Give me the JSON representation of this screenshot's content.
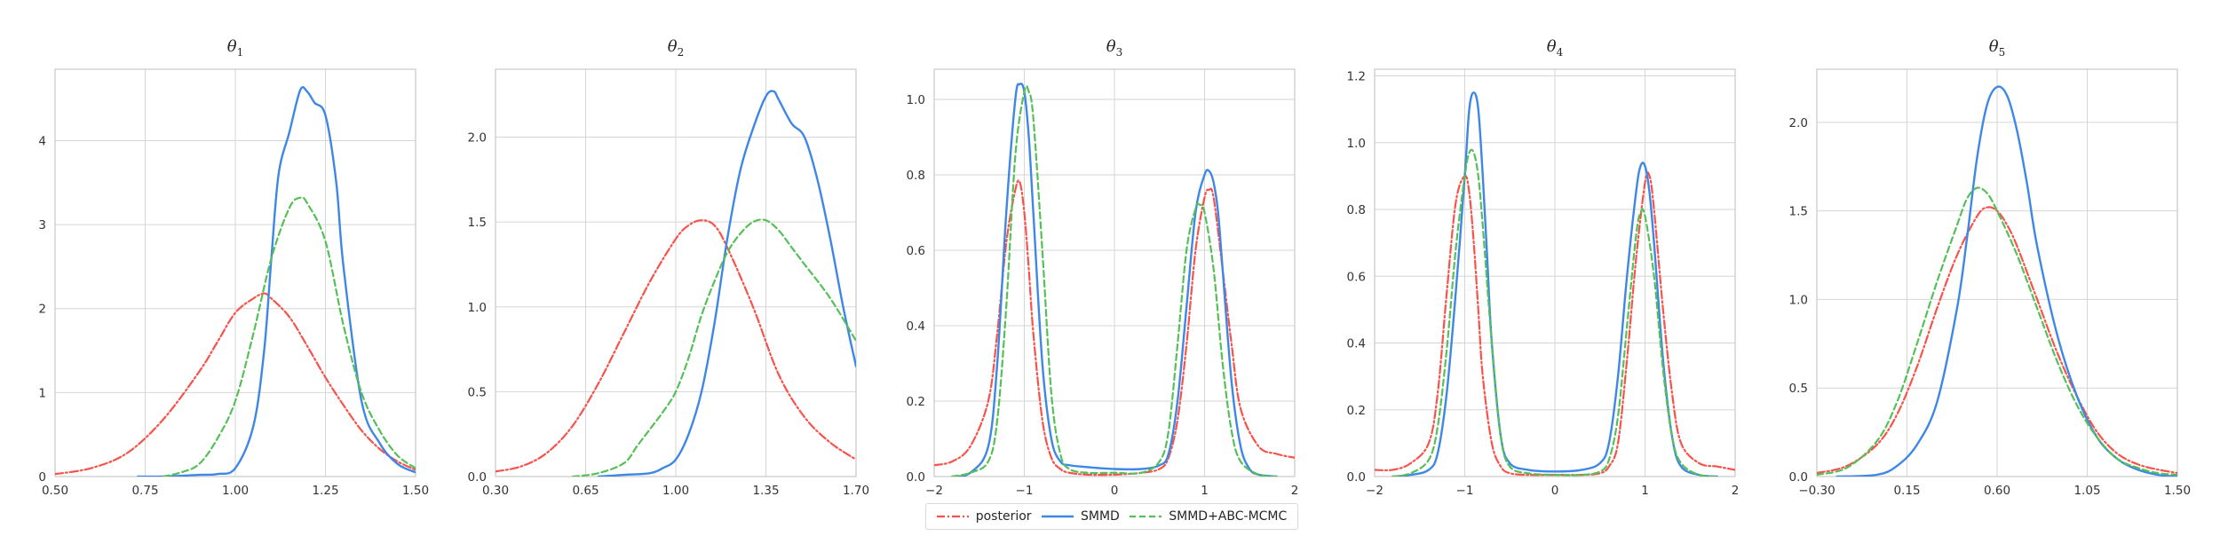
{
  "chart_data": [
    {
      "type": "line",
      "title": "θ1",
      "title_sub": "1",
      "xlim": [
        0.5,
        1.5
      ],
      "ylim": [
        0,
        4.85
      ],
      "xticks": [
        0.5,
        0.75,
        1.0,
        1.25,
        1.5
      ],
      "xtick_labels": [
        "0.50",
        "0.75",
        "1.00",
        "1.25",
        "1.50"
      ],
      "yticks": [
        0,
        1,
        2,
        3,
        4
      ],
      "ytick_labels": [
        "0",
        "1",
        "2",
        "3",
        "4"
      ],
      "grid": true,
      "series": [
        {
          "name": "posterior",
          "x": [
            0.5,
            0.6,
            0.7,
            0.8,
            0.9,
            0.95,
            1.0,
            1.05,
            1.08,
            1.1,
            1.15,
            1.2,
            1.25,
            1.3,
            1.35,
            1.4,
            1.45,
            1.5
          ],
          "y": [
            0.03,
            0.1,
            0.28,
            0.68,
            1.25,
            1.6,
            1.95,
            2.12,
            2.18,
            2.12,
            1.9,
            1.55,
            1.18,
            0.85,
            0.55,
            0.33,
            0.18,
            0.08
          ]
        },
        {
          "name": "SMMD",
          "x": [
            0.73,
            0.8,
            0.9,
            0.95,
            1.0,
            1.05,
            1.08,
            1.1,
            1.12,
            1.15,
            1.18,
            1.2,
            1.22,
            1.25,
            1.28,
            1.3,
            1.35,
            1.4,
            1.45,
            1.5
          ],
          "y": [
            0,
            0,
            0.02,
            0.03,
            0.1,
            0.6,
            1.5,
            2.6,
            3.6,
            4.1,
            4.6,
            4.58,
            4.45,
            4.3,
            3.5,
            2.5,
            0.9,
            0.4,
            0.15,
            0.05
          ]
        },
        {
          "name": "SMMD+ABC-MCMC",
          "x": [
            0.8,
            0.85,
            0.9,
            0.95,
            1.0,
            1.05,
            1.1,
            1.15,
            1.18,
            1.2,
            1.25,
            1.3,
            1.35,
            1.4,
            1.45,
            1.5
          ],
          "y": [
            0,
            0.05,
            0.15,
            0.45,
            0.9,
            1.7,
            2.6,
            3.2,
            3.32,
            3.25,
            2.8,
            1.8,
            1.0,
            0.55,
            0.25,
            0.1
          ]
        }
      ]
    },
    {
      "type": "line",
      "title": "θ2",
      "title_sub": "2",
      "xlim": [
        0.3,
        1.7
      ],
      "ylim": [
        0,
        2.4
      ],
      "xticks": [
        0.3,
        0.65,
        1.0,
        1.35,
        1.7
      ],
      "xtick_labels": [
        "0.30",
        "0.65",
        "1.00",
        "1.35",
        "1.70"
      ],
      "yticks": [
        0,
        0.5,
        1.0,
        1.5,
        2.0
      ],
      "ytick_labels": [
        "0.0",
        "0.5",
        "1.0",
        "1.5",
        "2.0"
      ],
      "grid": true,
      "series": [
        {
          "name": "posterior",
          "x": [
            0.3,
            0.4,
            0.5,
            0.6,
            0.7,
            0.8,
            0.9,
            1.0,
            1.05,
            1.1,
            1.15,
            1.2,
            1.3,
            1.4,
            1.5,
            1.6,
            1.7
          ],
          "y": [
            0.03,
            0.06,
            0.14,
            0.3,
            0.55,
            0.85,
            1.15,
            1.4,
            1.48,
            1.51,
            1.48,
            1.35,
            1.0,
            0.6,
            0.35,
            0.2,
            0.1
          ]
        },
        {
          "name": "SMMD",
          "x": [
            0.7,
            0.8,
            0.9,
            0.95,
            1.0,
            1.05,
            1.1,
            1.15,
            1.2,
            1.25,
            1.3,
            1.35,
            1.38,
            1.4,
            1.45,
            1.5,
            1.55,
            1.6,
            1.65,
            1.7
          ],
          "y": [
            0,
            0.01,
            0.02,
            0.05,
            0.1,
            0.25,
            0.5,
            0.9,
            1.4,
            1.8,
            2.05,
            2.24,
            2.27,
            2.22,
            2.08,
            2.0,
            1.75,
            1.4,
            1.0,
            0.65
          ]
        },
        {
          "name": "SMMD+ABC-MCMC",
          "x": [
            0.6,
            0.7,
            0.8,
            0.85,
            0.9,
            0.95,
            1.0,
            1.05,
            1.1,
            1.15,
            1.2,
            1.25,
            1.3,
            1.35,
            1.4,
            1.45,
            1.5,
            1.6,
            1.7
          ],
          "y": [
            0,
            0.02,
            0.08,
            0.18,
            0.28,
            0.38,
            0.5,
            0.7,
            0.95,
            1.15,
            1.32,
            1.43,
            1.5,
            1.51,
            1.45,
            1.35,
            1.25,
            1.05,
            0.8
          ]
        }
      ]
    },
    {
      "type": "line",
      "title": "θ3",
      "title_sub": "3",
      "xlim": [
        -2,
        2
      ],
      "ylim": [
        0,
        1.08
      ],
      "xticks": [
        -2,
        -1,
        0,
        1,
        2
      ],
      "xtick_labels": [
        "−2",
        "−1",
        "0",
        "1",
        "2"
      ],
      "yticks": [
        0,
        0.2,
        0.4,
        0.6,
        0.8,
        1.0
      ],
      "ytick_labels": [
        "0.0",
        "0.2",
        "0.4",
        "0.6",
        "0.8",
        "1.0"
      ],
      "grid": true,
      "series": [
        {
          "name": "posterior",
          "x": [
            -2,
            -1.8,
            -1.6,
            -1.4,
            -1.3,
            -1.2,
            -1.1,
            -1.05,
            -1.0,
            -0.95,
            -0.9,
            -0.8,
            -0.7,
            -0.6,
            -0.5,
            -0.3,
            0,
            0.3,
            0.5,
            0.6,
            0.7,
            0.8,
            0.9,
            1.0,
            1.05,
            1.1,
            1.2,
            1.3,
            1.4,
            1.6,
            1.8,
            2
          ],
          "y": [
            0.03,
            0.04,
            0.08,
            0.2,
            0.38,
            0.62,
            0.76,
            0.78,
            0.7,
            0.55,
            0.38,
            0.15,
            0.05,
            0.02,
            0.01,
            0.005,
            0.005,
            0.01,
            0.02,
            0.05,
            0.15,
            0.35,
            0.6,
            0.74,
            0.76,
            0.74,
            0.55,
            0.35,
            0.18,
            0.08,
            0.06,
            0.05
          ]
        },
        {
          "name": "SMMD",
          "x": [
            -1.8,
            -1.6,
            -1.4,
            -1.3,
            -1.2,
            -1.1,
            -1.05,
            -1.0,
            -0.95,
            -0.9,
            -0.8,
            -0.7,
            -0.6,
            -0.5,
            -0.3,
            0,
            0.3,
            0.5,
            0.6,
            0.7,
            0.8,
            0.9,
            1.0,
            1.05,
            1.1,
            1.15,
            1.2,
            1.3,
            1.4,
            1.5,
            1.6,
            1.8
          ],
          "y": [
            0,
            0.01,
            0.08,
            0.3,
            0.7,
            1.0,
            1.04,
            1.02,
            0.9,
            0.7,
            0.3,
            0.1,
            0.04,
            0.03,
            0.025,
            0.02,
            0.02,
            0.03,
            0.06,
            0.2,
            0.45,
            0.7,
            0.8,
            0.81,
            0.78,
            0.7,
            0.55,
            0.25,
            0.08,
            0.02,
            0.005,
            0
          ]
        },
        {
          "name": "SMMD+ABC-MCMC",
          "x": [
            -1.8,
            -1.6,
            -1.4,
            -1.3,
            -1.2,
            -1.1,
            -1.0,
            -0.95,
            -0.9,
            -0.8,
            -0.7,
            -0.6,
            -0.5,
            -0.3,
            0,
            0.3,
            0.5,
            0.6,
            0.7,
            0.8,
            0.9,
            0.95,
            1.0,
            1.1,
            1.2,
            1.3,
            1.4,
            1.6,
            1.8
          ],
          "y": [
            0,
            0.01,
            0.04,
            0.15,
            0.45,
            0.85,
            1.02,
            1.02,
            0.95,
            0.6,
            0.22,
            0.06,
            0.02,
            0.01,
            0.01,
            0.01,
            0.04,
            0.12,
            0.35,
            0.6,
            0.71,
            0.72,
            0.7,
            0.55,
            0.3,
            0.12,
            0.04,
            0.005,
            0
          ]
        }
      ]
    },
    {
      "type": "line",
      "title": "θ4",
      "title_sub": "4",
      "xlim": [
        -2,
        2
      ],
      "ylim": [
        0,
        1.22
      ],
      "xticks": [
        -2,
        -1,
        0,
        1,
        2
      ],
      "xtick_labels": [
        "−2",
        "−1",
        "0",
        "1",
        "2"
      ],
      "yticks": [
        0,
        0.2,
        0.4,
        0.6,
        0.8,
        1.0,
        1.2
      ],
      "ytick_labels": [
        "0.0",
        "0.2",
        "0.4",
        "0.6",
        "0.8",
        "1.0",
        "1.2"
      ],
      "grid": true,
      "series": [
        {
          "name": "posterior",
          "x": [
            -2,
            -1.8,
            -1.6,
            -1.4,
            -1.3,
            -1.2,
            -1.1,
            -1.0,
            -0.95,
            -0.9,
            -0.85,
            -0.8,
            -0.7,
            -0.6,
            -0.5,
            -0.3,
            0,
            0.3,
            0.5,
            0.6,
            0.7,
            0.8,
            0.9,
            1.0,
            1.05,
            1.1,
            1.2,
            1.3,
            1.4,
            1.6,
            1.8,
            2
          ],
          "y": [
            0.02,
            0.02,
            0.04,
            0.1,
            0.25,
            0.55,
            0.82,
            0.9,
            0.85,
            0.7,
            0.5,
            0.3,
            0.1,
            0.03,
            0.01,
            0.005,
            0.005,
            0.005,
            0.01,
            0.03,
            0.1,
            0.35,
            0.65,
            0.88,
            0.9,
            0.8,
            0.5,
            0.25,
            0.1,
            0.04,
            0.03,
            0.02
          ]
        },
        {
          "name": "SMMD",
          "x": [
            -1.8,
            -1.6,
            -1.4,
            -1.3,
            -1.2,
            -1.1,
            -1.0,
            -0.95,
            -0.9,
            -0.85,
            -0.8,
            -0.75,
            -0.7,
            -0.6,
            -0.5,
            -0.3,
            0,
            0.3,
            0.5,
            0.6,
            0.7,
            0.8,
            0.9,
            0.95,
            1.0,
            1.05,
            1.1,
            1.2,
            1.3,
            1.4,
            1.6,
            1.8
          ],
          "y": [
            0,
            0.005,
            0.02,
            0.07,
            0.25,
            0.55,
            0.9,
            1.1,
            1.15,
            1.1,
            0.9,
            0.65,
            0.4,
            0.12,
            0.04,
            0.02,
            0.015,
            0.02,
            0.04,
            0.1,
            0.3,
            0.6,
            0.85,
            0.93,
            0.93,
            0.85,
            0.7,
            0.35,
            0.12,
            0.03,
            0.005,
            0
          ]
        },
        {
          "name": "SMMD+ABC-MCMC",
          "x": [
            -1.8,
            -1.6,
            -1.4,
            -1.3,
            -1.2,
            -1.1,
            -1.0,
            -0.95,
            -0.9,
            -0.85,
            -0.8,
            -0.7,
            -0.6,
            -0.5,
            -0.3,
            0,
            0.3,
            0.5,
            0.6,
            0.7,
            0.8,
            0.9,
            0.95,
            1.0,
            1.1,
            1.2,
            1.3,
            1.4,
            1.6,
            1.8
          ],
          "y": [
            0,
            0.01,
            0.05,
            0.15,
            0.38,
            0.68,
            0.9,
            0.97,
            0.97,
            0.9,
            0.75,
            0.4,
            0.12,
            0.03,
            0.01,
            0.005,
            0.005,
            0.015,
            0.05,
            0.18,
            0.45,
            0.72,
            0.79,
            0.78,
            0.6,
            0.32,
            0.12,
            0.04,
            0.005,
            0
          ]
        }
      ]
    },
    {
      "type": "line",
      "title": "θ5",
      "title_sub": "5",
      "xlim": [
        -0.3,
        1.5
      ],
      "ylim": [
        0,
        2.3
      ],
      "xticks": [
        -0.3,
        0.15,
        0.6,
        1.05,
        1.5
      ],
      "xtick_labels": [
        "−0.30",
        "0.15",
        "0.60",
        "1.05",
        "1.50"
      ],
      "yticks": [
        0,
        0.5,
        1.0,
        1.5,
        2.0
      ],
      "ytick_labels": [
        "0.0",
        "0.5",
        "1.0",
        "1.5",
        "2.0"
      ],
      "grid": true,
      "series": [
        {
          "name": "posterior",
          "x": [
            -0.3,
            -0.15,
            0,
            0.1,
            0.2,
            0.3,
            0.4,
            0.5,
            0.55,
            0.6,
            0.65,
            0.7,
            0.8,
            0.9,
            1.0,
            1.1,
            1.2,
            1.3,
            1.4,
            1.5
          ],
          "y": [
            0.02,
            0.06,
            0.18,
            0.35,
            0.62,
            0.95,
            1.25,
            1.47,
            1.52,
            1.5,
            1.42,
            1.3,
            1.0,
            0.7,
            0.45,
            0.25,
            0.13,
            0.07,
            0.04,
            0.02
          ]
        },
        {
          "name": "SMMD",
          "x": [
            -0.2,
            0,
            0.1,
            0.2,
            0.3,
            0.4,
            0.45,
            0.5,
            0.55,
            0.6,
            0.65,
            0.7,
            0.75,
            0.8,
            0.9,
            1.0,
            1.1,
            1.2,
            1.3,
            1.4,
            1.5
          ],
          "y": [
            0,
            0.01,
            0.06,
            0.18,
            0.42,
            0.95,
            1.35,
            1.8,
            2.1,
            2.2,
            2.15,
            1.95,
            1.65,
            1.3,
            0.8,
            0.45,
            0.22,
            0.1,
            0.04,
            0.01,
            0
          ]
        },
        {
          "name": "SMMD+ABC-MCMC",
          "x": [
            -0.3,
            -0.15,
            0,
            0.1,
            0.2,
            0.3,
            0.4,
            0.45,
            0.5,
            0.55,
            0.6,
            0.7,
            0.8,
            0.9,
            1.0,
            1.1,
            1.2,
            1.3,
            1.4,
            1.5
          ],
          "y": [
            0.01,
            0.05,
            0.2,
            0.42,
            0.75,
            1.1,
            1.42,
            1.57,
            1.63,
            1.6,
            1.5,
            1.25,
            0.95,
            0.65,
            0.4,
            0.22,
            0.1,
            0.05,
            0.02,
            0.01
          ]
        }
      ]
    }
  ],
  "legend": {
    "placement": "bottom-center",
    "items": [
      {
        "label": "posterior",
        "color": "#f8524b",
        "style": "dashdot"
      },
      {
        "label": "SMMD",
        "color": "#3e87e6",
        "style": "solid"
      },
      {
        "label": "SMMD+ABC-MCMC",
        "color": "#55c058",
        "style": "dashed"
      }
    ]
  },
  "colors": {
    "posterior": "#f8524b",
    "SMMD": "#3e87e6",
    "SMMD+ABC-MCMC": "#55c058",
    "grid": "#d6d6d6",
    "axis": "#c9c9c9"
  }
}
